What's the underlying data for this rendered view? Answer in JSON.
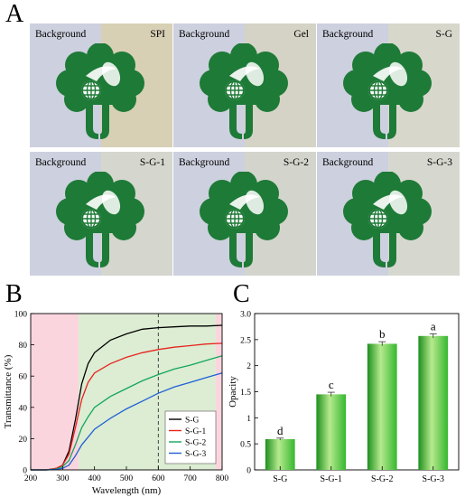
{
  "panel_letters": {
    "a": "A",
    "b": "B",
    "c": "C"
  },
  "photo_panel": {
    "background_label": "Background",
    "background_color": "#cdd0de",
    "tiles": [
      {
        "film": "SPI",
        "film_color": "#d8d0b4"
      },
      {
        "film": "Gel",
        "film_color": "#d4d3c6"
      },
      {
        "film": "S-G",
        "film_color": "#d7d7cc"
      },
      {
        "film": "S-G-1",
        "film_color": "#d5d6cd"
      },
      {
        "film": "S-G-2",
        "film_color": "#d3d5cd"
      },
      {
        "film": "S-G-3",
        "film_color": "#d6d8cf"
      }
    ],
    "logo_color": "#1e7a37"
  },
  "chart_data": [
    {
      "type": "line",
      "xlabel": "Wavelength (nm)",
      "ylabel": "Transmittance (%)",
      "xlim": [
        200,
        800
      ],
      "ylim": [
        0,
        100
      ],
      "xticks": [
        200,
        300,
        400,
        500,
        600,
        700,
        800
      ],
      "yticks": [
        0,
        20,
        40,
        60,
        80,
        100
      ],
      "shaded_regions": [
        {
          "from": 200,
          "to": 350,
          "color": "#fbd5de"
        },
        {
          "from": 350,
          "to": 780,
          "color": "#dcedd3"
        },
        {
          "from": 780,
          "to": 800,
          "color": "#fbd5de"
        }
      ],
      "vline": 600,
      "legend_position": "right",
      "series": [
        {
          "name": "S-G",
          "color": "#000000",
          "x": [
            200,
            250,
            280,
            300,
            320,
            340,
            360,
            380,
            400,
            450,
            500,
            550,
            600,
            650,
            700,
            750,
            800
          ],
          "y": [
            0,
            0,
            1,
            3,
            12,
            32,
            55,
            68,
            75,
            83,
            87,
            90,
            91,
            91.5,
            92,
            92,
            92.5
          ]
        },
        {
          "name": "S-G-1",
          "color": "#e8231e",
          "x": [
            200,
            250,
            280,
            300,
            320,
            340,
            360,
            380,
            400,
            450,
            500,
            550,
            600,
            650,
            700,
            750,
            800
          ],
          "y": [
            0,
            0,
            1,
            3,
            10,
            27,
            45,
            56,
            62,
            68,
            72,
            75,
            77,
            78.5,
            79.5,
            80.5,
            81
          ]
        },
        {
          "name": "S-G-2",
          "color": "#12a65b",
          "x": [
            200,
            250,
            280,
            300,
            320,
            340,
            360,
            380,
            400,
            450,
            500,
            550,
            600,
            650,
            700,
            750,
            800
          ],
          "y": [
            0,
            0,
            0.5,
            2,
            6,
            16,
            27,
            34,
            40,
            47,
            52,
            57,
            61,
            64.5,
            67,
            70,
            73
          ]
        },
        {
          "name": "S-G-3",
          "color": "#1f5fd6",
          "x": [
            200,
            250,
            280,
            300,
            320,
            340,
            360,
            380,
            400,
            450,
            500,
            550,
            600,
            650,
            700,
            750,
            800
          ],
          "y": [
            0,
            0,
            0.3,
            1,
            3,
            9,
            16,
            21,
            26,
            33,
            39,
            44,
            49,
            53,
            56,
            59,
            62
          ]
        }
      ]
    },
    {
      "type": "bar",
      "xlabel": "",
      "ylabel": "Opacity",
      "ylim": [
        0,
        3.0
      ],
      "yticks": [
        0,
        0.5,
        1.0,
        1.5,
        2.0,
        2.5,
        3.0
      ],
      "ytick_labels": [
        "0",
        "0.5",
        "1",
        "1.5",
        "2",
        "2.5",
        "3.0"
      ],
      "categories": [
        "S-G",
        "S-G-1",
        "S-G-2",
        "S-G-3"
      ],
      "values": [
        0.59,
        1.45,
        2.42,
        2.57
      ],
      "errors": [
        0.02,
        0.04,
        0.04,
        0.04
      ],
      "letters": [
        "d",
        "c",
        "b",
        "a"
      ],
      "bar_color": "#35b72f"
    }
  ]
}
